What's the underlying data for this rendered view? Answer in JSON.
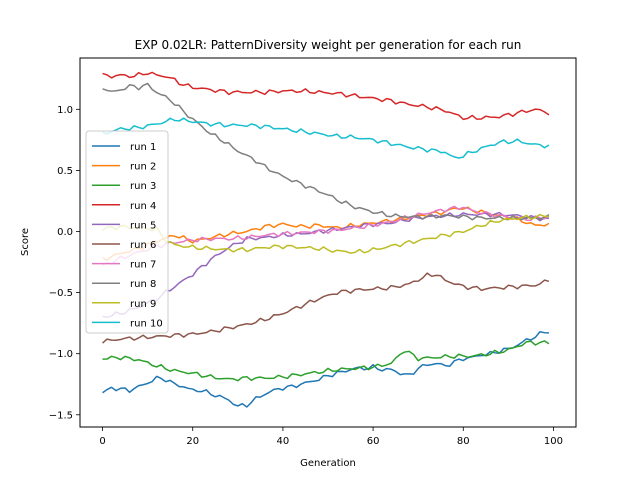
{
  "chart_data": {
    "type": "line",
    "title": "EXP 0.02LR: PatternDiversity weight per generation for each run",
    "xlabel": "Generation",
    "ylabel": "Score",
    "xlim": [
      -5,
      105
    ],
    "ylim": [
      -1.6,
      1.42
    ],
    "xticks": [
      0,
      20,
      40,
      60,
      80,
      100
    ],
    "yticks": [
      -1.5,
      -1.0,
      -0.5,
      0.0,
      0.5,
      1.0
    ],
    "ytick_labels": [
      "−1.5",
      "−1.0",
      "−0.5",
      "0.0",
      "0.5",
      "1.0"
    ],
    "grid": false,
    "legend": "upper-left",
    "series": [
      {
        "name": "run 1",
        "color": "#1f77b4",
        "keypoints": [
          [
            0,
            -1.32
          ],
          [
            2,
            -1.28
          ],
          [
            4,
            -1.29
          ],
          [
            6,
            -1.3
          ],
          [
            8,
            -1.27
          ],
          [
            10,
            -1.24
          ],
          [
            12,
            -1.2
          ],
          [
            14,
            -1.21
          ],
          [
            16,
            -1.25
          ],
          [
            18,
            -1.27
          ],
          [
            20,
            -1.3
          ],
          [
            22,
            -1.3
          ],
          [
            24,
            -1.33
          ],
          [
            26,
            -1.35
          ],
          [
            28,
            -1.38
          ],
          [
            30,
            -1.43
          ],
          [
            32,
            -1.42
          ],
          [
            34,
            -1.37
          ],
          [
            36,
            -1.33
          ],
          [
            38,
            -1.3
          ],
          [
            40,
            -1.28
          ],
          [
            42,
            -1.27
          ],
          [
            44,
            -1.25
          ],
          [
            46,
            -1.23
          ],
          [
            48,
            -1.21
          ],
          [
            50,
            -1.18
          ],
          [
            52,
            -1.16
          ],
          [
            54,
            -1.14
          ],
          [
            56,
            -1.12
          ],
          [
            58,
            -1.12
          ],
          [
            60,
            -1.11
          ],
          [
            62,
            -1.13
          ],
          [
            64,
            -1.13
          ],
          [
            66,
            -1.16
          ],
          [
            68,
            -1.18
          ],
          [
            70,
            -1.12
          ],
          [
            72,
            -1.09
          ],
          [
            74,
            -1.08
          ],
          [
            76,
            -1.1
          ],
          [
            78,
            -1.07
          ],
          [
            80,
            -1.04
          ],
          [
            82,
            -1.03
          ],
          [
            84,
            -1.01
          ],
          [
            86,
            -1.0
          ],
          [
            88,
            -0.98
          ],
          [
            90,
            -0.96
          ],
          [
            92,
            -0.93
          ],
          [
            94,
            -0.89
          ],
          [
            96,
            -0.86
          ],
          [
            98,
            -0.82
          ],
          [
            99,
            -0.82
          ]
        ]
      },
      {
        "name": "run 2",
        "color": "#ff7f0e",
        "keypoints": [
          [
            0,
            -0.23
          ],
          [
            4,
            -0.18
          ],
          [
            8,
            -0.14
          ],
          [
            12,
            -0.08
          ],
          [
            16,
            -0.03
          ],
          [
            20,
            -0.08
          ],
          [
            24,
            -0.05
          ],
          [
            28,
            -0.02
          ],
          [
            32,
            0.0
          ],
          [
            36,
            0.04
          ],
          [
            40,
            0.06
          ],
          [
            44,
            0.04
          ],
          [
            48,
            0.05
          ],
          [
            52,
            0.03
          ],
          [
            56,
            0.05
          ],
          [
            60,
            0.07
          ],
          [
            64,
            0.09
          ],
          [
            68,
            0.11
          ],
          [
            72,
            0.14
          ],
          [
            76,
            0.16
          ],
          [
            78,
            0.19
          ],
          [
            80,
            0.19
          ],
          [
            84,
            0.16
          ],
          [
            88,
            0.13
          ],
          [
            92,
            0.1
          ],
          [
            96,
            0.05
          ],
          [
            99,
            0.06
          ]
        ]
      },
      {
        "name": "run 3",
        "color": "#2ca02c",
        "keypoints": [
          [
            0,
            -1.04
          ],
          [
            4,
            -1.03
          ],
          [
            8,
            -1.05
          ],
          [
            12,
            -1.1
          ],
          [
            16,
            -1.14
          ],
          [
            20,
            -1.16
          ],
          [
            24,
            -1.19
          ],
          [
            28,
            -1.21
          ],
          [
            32,
            -1.2
          ],
          [
            36,
            -1.2
          ],
          [
            40,
            -1.19
          ],
          [
            44,
            -1.17
          ],
          [
            48,
            -1.15
          ],
          [
            52,
            -1.13
          ],
          [
            56,
            -1.12
          ],
          [
            60,
            -1.11
          ],
          [
            64,
            -1.08
          ],
          [
            67,
            -0.97
          ],
          [
            70,
            -1.04
          ],
          [
            74,
            -1.03
          ],
          [
            78,
            -1.02
          ],
          [
            82,
            -1.02
          ],
          [
            86,
            -1.0
          ],
          [
            90,
            -0.97
          ],
          [
            94,
            -0.91
          ],
          [
            99,
            -0.91
          ]
        ]
      },
      {
        "name": "run 4",
        "color": "#d62728",
        "keypoints": [
          [
            0,
            1.28
          ],
          [
            2,
            1.27
          ],
          [
            4,
            1.28
          ],
          [
            6,
            1.27
          ],
          [
            8,
            1.28
          ],
          [
            10,
            1.3
          ],
          [
            12,
            1.28
          ],
          [
            14,
            1.27
          ],
          [
            16,
            1.24
          ],
          [
            18,
            1.2
          ],
          [
            20,
            1.18
          ],
          [
            24,
            1.16
          ],
          [
            28,
            1.14
          ],
          [
            32,
            1.14
          ],
          [
            36,
            1.14
          ],
          [
            40,
            1.15
          ],
          [
            44,
            1.15
          ],
          [
            48,
            1.14
          ],
          [
            52,
            1.13
          ],
          [
            56,
            1.11
          ],
          [
            60,
            1.09
          ],
          [
            64,
            1.07
          ],
          [
            68,
            1.04
          ],
          [
            72,
            1.02
          ],
          [
            76,
            0.99
          ],
          [
            80,
            0.93
          ],
          [
            84,
            0.93
          ],
          [
            88,
            0.94
          ],
          [
            92,
            0.97
          ],
          [
            96,
            1.0
          ],
          [
            99,
            0.97
          ]
        ]
      },
      {
        "name": "run 5",
        "color": "#9467bd",
        "keypoints": [
          [
            0,
            -0.7
          ],
          [
            4,
            -0.67
          ],
          [
            8,
            -0.62
          ],
          [
            12,
            -0.55
          ],
          [
            16,
            -0.45
          ],
          [
            20,
            -0.35
          ],
          [
            24,
            -0.23
          ],
          [
            28,
            -0.13
          ],
          [
            32,
            -0.06
          ],
          [
            36,
            -0.05
          ],
          [
            40,
            -0.03
          ],
          [
            44,
            -0.02
          ],
          [
            48,
            0.0
          ],
          [
            52,
            0.02
          ],
          [
            56,
            0.04
          ],
          [
            60,
            0.06
          ],
          [
            64,
            0.07
          ],
          [
            68,
            0.1
          ],
          [
            72,
            0.12
          ],
          [
            76,
            0.13
          ],
          [
            80,
            0.14
          ],
          [
            84,
            0.14
          ],
          [
            88,
            0.14
          ],
          [
            92,
            0.13
          ],
          [
            96,
            0.11
          ],
          [
            99,
            0.1
          ]
        ]
      },
      {
        "name": "run 6",
        "color": "#8c564b",
        "keypoints": [
          [
            0,
            -0.9
          ],
          [
            4,
            -0.88
          ],
          [
            8,
            -0.87
          ],
          [
            12,
            -0.86
          ],
          [
            16,
            -0.85
          ],
          [
            20,
            -0.84
          ],
          [
            24,
            -0.82
          ],
          [
            28,
            -0.79
          ],
          [
            32,
            -0.76
          ],
          [
            36,
            -0.72
          ],
          [
            40,
            -0.67
          ],
          [
            44,
            -0.61
          ],
          [
            48,
            -0.55
          ],
          [
            52,
            -0.5
          ],
          [
            56,
            -0.48
          ],
          [
            60,
            -0.47
          ],
          [
            64,
            -0.46
          ],
          [
            68,
            -0.43
          ],
          [
            72,
            -0.36
          ],
          [
            74,
            -0.35
          ],
          [
            76,
            -0.4
          ],
          [
            80,
            -0.45
          ],
          [
            84,
            -0.47
          ],
          [
            88,
            -0.46
          ],
          [
            92,
            -0.45
          ],
          [
            96,
            -0.44
          ],
          [
            99,
            -0.4
          ]
        ]
      },
      {
        "name": "run 7",
        "color": "#e377c2",
        "keypoints": [
          [
            0,
            -0.28
          ],
          [
            4,
            -0.22
          ],
          [
            8,
            -0.17
          ],
          [
            12,
            -0.12
          ],
          [
            16,
            -0.09
          ],
          [
            20,
            -0.07
          ],
          [
            24,
            -0.06
          ],
          [
            28,
            -0.06
          ],
          [
            32,
            -0.05
          ],
          [
            36,
            -0.03
          ],
          [
            40,
            -0.02
          ],
          [
            44,
            -0.01
          ],
          [
            48,
            0.0
          ],
          [
            52,
            0.01
          ],
          [
            56,
            0.03
          ],
          [
            60,
            0.05
          ],
          [
            64,
            0.08
          ],
          [
            68,
            0.12
          ],
          [
            72,
            0.15
          ],
          [
            76,
            0.18
          ],
          [
            80,
            0.2
          ],
          [
            82,
            0.17
          ],
          [
            86,
            0.14
          ],
          [
            90,
            0.12
          ],
          [
            94,
            0.1
          ],
          [
            99,
            0.12
          ]
        ]
      },
      {
        "name": "run 8",
        "color": "#7f7f7f",
        "keypoints": [
          [
            0,
            1.18
          ],
          [
            2,
            1.14
          ],
          [
            4,
            1.16
          ],
          [
            6,
            1.19
          ],
          [
            8,
            1.18
          ],
          [
            10,
            1.2
          ],
          [
            12,
            1.14
          ],
          [
            14,
            1.1
          ],
          [
            16,
            1.05
          ],
          [
            18,
            0.98
          ],
          [
            20,
            0.92
          ],
          [
            22,
            0.86
          ],
          [
            24,
            0.8
          ],
          [
            26,
            0.76
          ],
          [
            28,
            0.71
          ],
          [
            30,
            0.66
          ],
          [
            32,
            0.62
          ],
          [
            34,
            0.58
          ],
          [
            36,
            0.53
          ],
          [
            38,
            0.49
          ],
          [
            40,
            0.45
          ],
          [
            42,
            0.42
          ],
          [
            44,
            0.39
          ],
          [
            46,
            0.36
          ],
          [
            48,
            0.33
          ],
          [
            50,
            0.3
          ],
          [
            52,
            0.26
          ],
          [
            54,
            0.23
          ],
          [
            56,
            0.2
          ],
          [
            58,
            0.18
          ],
          [
            60,
            0.16
          ],
          [
            64,
            0.13
          ],
          [
            68,
            0.12
          ],
          [
            72,
            0.12
          ],
          [
            76,
            0.13
          ],
          [
            80,
            0.12
          ],
          [
            84,
            0.11
          ],
          [
            88,
            0.11
          ],
          [
            92,
            0.11
          ],
          [
            96,
            0.11
          ],
          [
            99,
            0.12
          ]
        ]
      },
      {
        "name": "run 9",
        "color": "#bcbd22",
        "keypoints": [
          [
            0,
            0.02
          ],
          [
            4,
            0.04
          ],
          [
            8,
            0.03
          ],
          [
            12,
            0.02
          ],
          [
            14,
            -0.07
          ],
          [
            16,
            -0.11
          ],
          [
            20,
            -0.13
          ],
          [
            24,
            -0.14
          ],
          [
            28,
            -0.15
          ],
          [
            32,
            -0.15
          ],
          [
            36,
            -0.13
          ],
          [
            40,
            -0.12
          ],
          [
            44,
            -0.13
          ],
          [
            48,
            -0.14
          ],
          [
            52,
            -0.16
          ],
          [
            56,
            -0.17
          ],
          [
            60,
            -0.15
          ],
          [
            64,
            -0.12
          ],
          [
            68,
            -0.09
          ],
          [
            72,
            -0.06
          ],
          [
            76,
            -0.03
          ],
          [
            80,
            0.0
          ],
          [
            84,
            0.05
          ],
          [
            88,
            0.09
          ],
          [
            92,
            0.11
          ],
          [
            96,
            0.12
          ],
          [
            99,
            0.13
          ]
        ]
      },
      {
        "name": "run 10",
        "color": "#17becf",
        "keypoints": [
          [
            0,
            0.8
          ],
          [
            4,
            0.84
          ],
          [
            8,
            0.85
          ],
          [
            12,
            0.88
          ],
          [
            16,
            0.92
          ],
          [
            20,
            0.9
          ],
          [
            24,
            0.88
          ],
          [
            28,
            0.87
          ],
          [
            32,
            0.87
          ],
          [
            36,
            0.86
          ],
          [
            40,
            0.84
          ],
          [
            44,
            0.82
          ],
          [
            48,
            0.8
          ],
          [
            52,
            0.78
          ],
          [
            56,
            0.77
          ],
          [
            60,
            0.75
          ],
          [
            64,
            0.72
          ],
          [
            68,
            0.69
          ],
          [
            72,
            0.67
          ],
          [
            76,
            0.65
          ],
          [
            78,
            0.6
          ],
          [
            80,
            0.62
          ],
          [
            84,
            0.68
          ],
          [
            88,
            0.73
          ],
          [
            92,
            0.74
          ],
          [
            96,
            0.71
          ],
          [
            99,
            0.7
          ]
        ]
      }
    ]
  }
}
